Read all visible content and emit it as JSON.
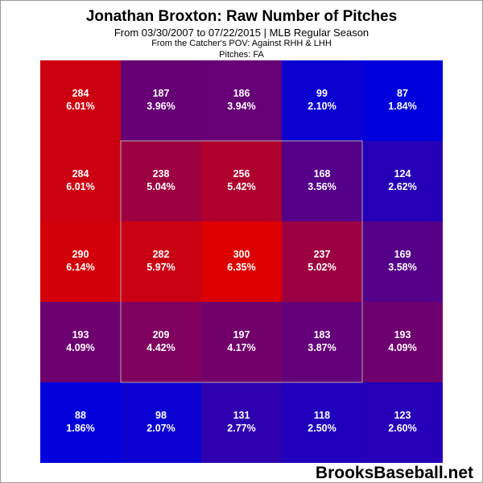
{
  "header": {
    "title": "Jonathan Broxton: Raw Number of Pitches",
    "subtitle": "From 03/30/2007 to 07/22/2015 | MLB Regular Season",
    "pov": "From the Catcher's POV:  Against RHH & LHH",
    "pitches": "Pitches:  FA"
  },
  "brand": "BrooksBaseball.net",
  "chart_data": {
    "type": "heatmap",
    "rows": 5,
    "cols": 5,
    "strike_zone": "inner 3x3 cells outlined",
    "color_scale": {
      "low": "#0000dd",
      "high": "#dd0000"
    },
    "cells": [
      [
        {
          "count": 284,
          "pct": "6.01%"
        },
        {
          "count": 187,
          "pct": "3.96%"
        },
        {
          "count": 186,
          "pct": "3.94%"
        },
        {
          "count": 99,
          "pct": "2.10%"
        },
        {
          "count": 87,
          "pct": "1.84%"
        }
      ],
      [
        {
          "count": 284,
          "pct": "6.01%"
        },
        {
          "count": 238,
          "pct": "5.04%"
        },
        {
          "count": 256,
          "pct": "5.42%"
        },
        {
          "count": 168,
          "pct": "3.56%"
        },
        {
          "count": 124,
          "pct": "2.62%"
        }
      ],
      [
        {
          "count": 290,
          "pct": "6.14%"
        },
        {
          "count": 282,
          "pct": "5.97%"
        },
        {
          "count": 300,
          "pct": "6.35%"
        },
        {
          "count": 237,
          "pct": "5.02%"
        },
        {
          "count": 169,
          "pct": "3.58%"
        }
      ],
      [
        {
          "count": 193,
          "pct": "4.09%"
        },
        {
          "count": 209,
          "pct": "4.42%"
        },
        {
          "count": 197,
          "pct": "4.17%"
        },
        {
          "count": 183,
          "pct": "3.87%"
        },
        {
          "count": 193,
          "pct": "4.09%"
        }
      ],
      [
        {
          "count": 88,
          "pct": "1.86%"
        },
        {
          "count": 98,
          "pct": "2.07%"
        },
        {
          "count": 131,
          "pct": "2.77%"
        },
        {
          "count": 118,
          "pct": "2.50%"
        },
        {
          "count": 123,
          "pct": "2.60%"
        }
      ]
    ]
  }
}
